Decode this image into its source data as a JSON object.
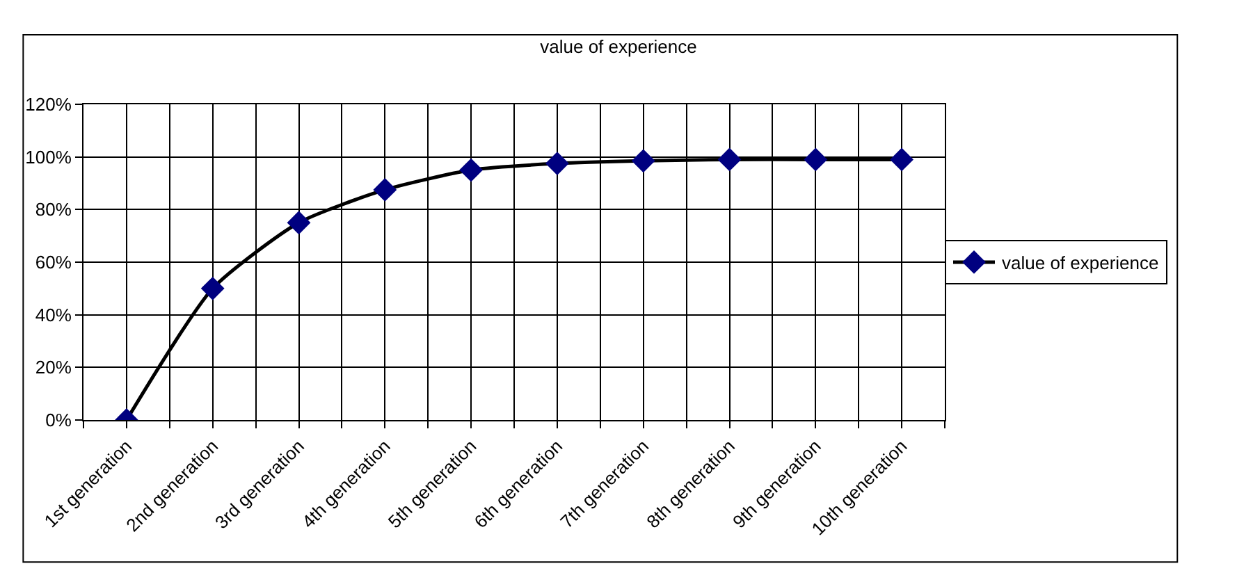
{
  "chart_data": {
    "type": "line",
    "title": "value of experience",
    "categories": [
      "1st generation",
      "2nd generation",
      "3rd generation",
      "4th generation",
      "5th generation",
      "6th generation",
      "7th generation",
      "8th generation",
      "9th generation",
      "10th generation"
    ],
    "series": [
      {
        "name": "value of experience",
        "color": "#000080",
        "values": [
          0,
          50,
          75,
          87.5,
          95,
          97.5,
          98.5,
          99,
          99,
          99
        ]
      }
    ],
    "ylim": [
      0,
      120
    ],
    "yticks": [
      {
        "value": 0,
        "label": "0%"
      },
      {
        "value": 20,
        "label": "20%"
      },
      {
        "value": 40,
        "label": "40%"
      },
      {
        "value": 60,
        "label": "60%"
      },
      {
        "value": 80,
        "label": "80%"
      },
      {
        "value": 100,
        "label": "100%"
      },
      {
        "value": 120,
        "label": "120%"
      }
    ],
    "grid": true,
    "legend": "right",
    "marker": "diamond",
    "line_style": "solid"
  }
}
